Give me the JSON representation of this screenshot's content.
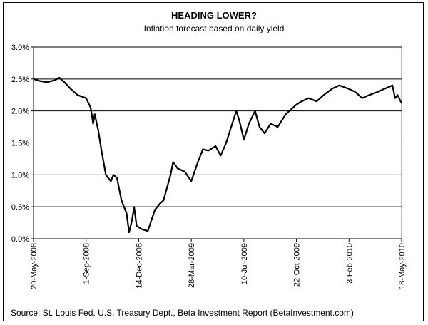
{
  "chart_data": {
    "type": "line",
    "title": "HEADING LOWER?",
    "subtitle": "Inflation forecast based on daily yield",
    "source": "Source: St. Louis Fed, U.S. Treasury Dept., Beta Investment Report (BetaInvestment.com)",
    "ylim": [
      0,
      3.0
    ],
    "y_tick_labels": [
      "0.0%",
      "0.5%",
      "1.0%",
      "1.5%",
      "2.0%",
      "2.5%",
      "3.0%"
    ],
    "y_ticks": [
      0,
      0.5,
      1.0,
      1.5,
      2.0,
      2.5,
      3.0
    ],
    "x_tick_labels": [
      "20-May-2008",
      "1-Sep-2008",
      "14-Dec-2008",
      "28-Mar-2009",
      "10-Jul-2009",
      "22-Oct-2009",
      "3-Feb-2010",
      "18-May-2010"
    ],
    "grid": "horizontal",
    "series": [
      {
        "color": "#000000",
        "x": [
          "2008-05-20",
          "2008-06-01",
          "2008-06-15",
          "2008-07-01",
          "2008-07-10",
          "2008-07-20",
          "2008-08-01",
          "2008-08-15",
          "2008-09-01",
          "2008-09-10",
          "2008-09-15",
          "2008-09-18",
          "2008-09-25",
          "2008-10-01",
          "2008-10-10",
          "2008-10-20",
          "2008-10-25",
          "2008-11-01",
          "2008-11-10",
          "2008-11-20",
          "2008-11-25",
          "2008-12-01",
          "2008-12-05",
          "2008-12-10",
          "2008-12-20",
          "2009-01-01",
          "2009-01-15",
          "2009-01-25",
          "2009-02-01",
          "2009-02-15",
          "2009-02-20",
          "2009-03-01",
          "2009-03-15",
          "2009-03-28",
          "2009-04-10",
          "2009-04-20",
          "2009-05-01",
          "2009-05-15",
          "2009-05-25",
          "2009-06-05",
          "2009-06-15",
          "2009-06-25",
          "2009-07-01",
          "2009-07-10",
          "2009-07-20",
          "2009-08-01",
          "2009-08-10",
          "2009-08-20",
          "2009-09-01",
          "2009-09-15",
          "2009-10-01",
          "2009-10-15",
          "2009-10-22",
          "2009-11-01",
          "2009-11-15",
          "2009-12-01",
          "2009-12-15",
          "2010-01-01",
          "2010-01-15",
          "2010-02-01",
          "2010-02-15",
          "2010-03-01",
          "2010-03-15",
          "2010-04-01",
          "2010-04-15",
          "2010-04-30",
          "2010-05-05",
          "2010-05-10",
          "2010-05-18"
        ],
        "values": [
          2.5,
          2.47,
          2.45,
          2.48,
          2.52,
          2.45,
          2.35,
          2.25,
          2.2,
          2.05,
          1.8,
          1.95,
          1.7,
          1.4,
          1.0,
          0.9,
          1.0,
          0.95,
          0.6,
          0.4,
          0.1,
          0.3,
          0.5,
          0.2,
          0.15,
          0.12,
          0.45,
          0.55,
          0.6,
          1.0,
          1.2,
          1.1,
          1.05,
          0.9,
          1.2,
          1.4,
          1.38,
          1.45,
          1.3,
          1.5,
          1.75,
          2.0,
          1.85,
          1.55,
          1.8,
          2.0,
          1.75,
          1.65,
          1.8,
          1.75,
          1.95,
          2.05,
          2.1,
          2.15,
          2.2,
          2.15,
          2.25,
          2.35,
          2.4,
          2.35,
          2.3,
          2.2,
          2.25,
          2.3,
          2.35,
          2.4,
          2.2,
          2.25,
          2.12
        ]
      }
    ]
  }
}
